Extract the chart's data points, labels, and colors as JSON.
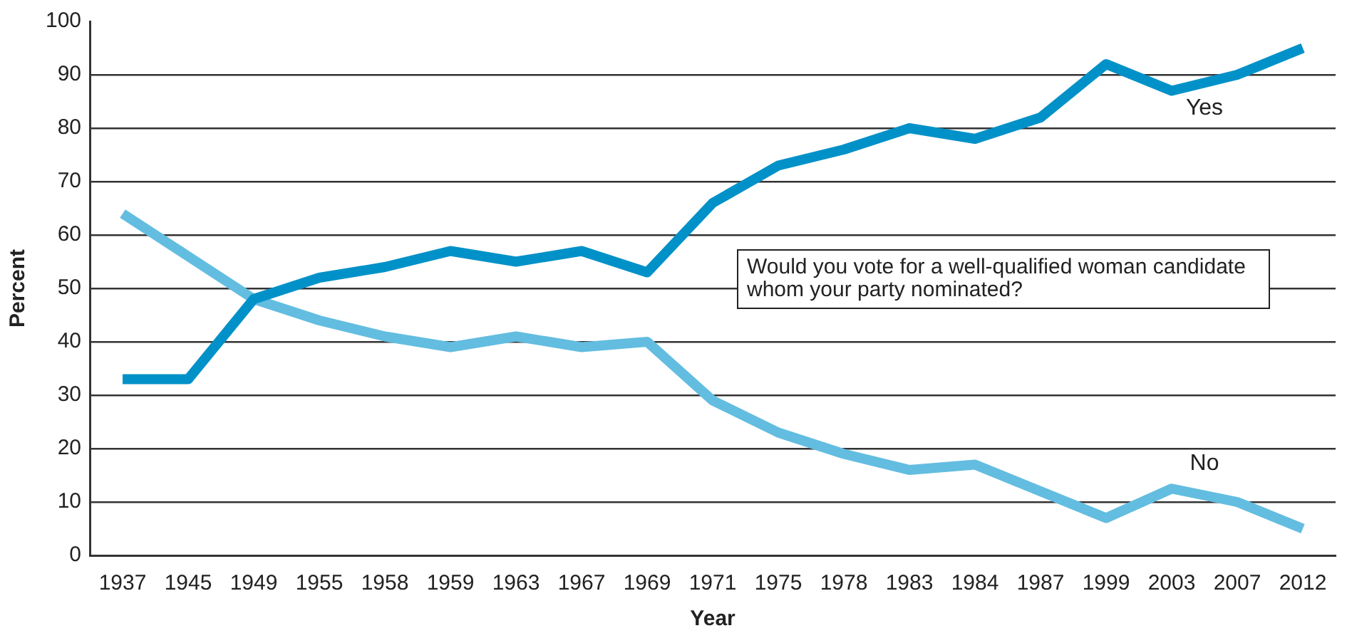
{
  "chart_data": {
    "type": "line",
    "xlabel": "Year",
    "ylabel": "Percent",
    "categories": [
      "1937",
      "1945",
      "1949",
      "1955",
      "1958",
      "1959",
      "1963",
      "1967",
      "1969",
      "1971",
      "1975",
      "1978",
      "1983",
      "1984",
      "1987",
      "1999",
      "2003",
      "2007",
      "2012"
    ],
    "series": [
      {
        "name": "Yes",
        "color": "#0091c8",
        "values": [
          33,
          33,
          48,
          52,
          54,
          57,
          55,
          57,
          53,
          66,
          73,
          76,
          80,
          78,
          82,
          92,
          87,
          90,
          95
        ]
      },
      {
        "name": "No",
        "color": "#63bde0",
        "values": [
          64,
          56,
          48,
          44,
          41,
          39,
          41,
          39,
          40,
          29,
          23,
          19,
          16,
          17,
          12,
          7,
          12.5,
          10,
          5
        ]
      }
    ],
    "ylim": [
      0,
      100
    ],
    "yticks": [
      0,
      10,
      20,
      30,
      40,
      50,
      60,
      70,
      80,
      90,
      100
    ],
    "grid": "y",
    "legend": false,
    "marker": "none",
    "line_style": "solid",
    "annotations": [
      "Would you vote for a well-qualified woman candidate whom your party nominated?"
    ]
  }
}
